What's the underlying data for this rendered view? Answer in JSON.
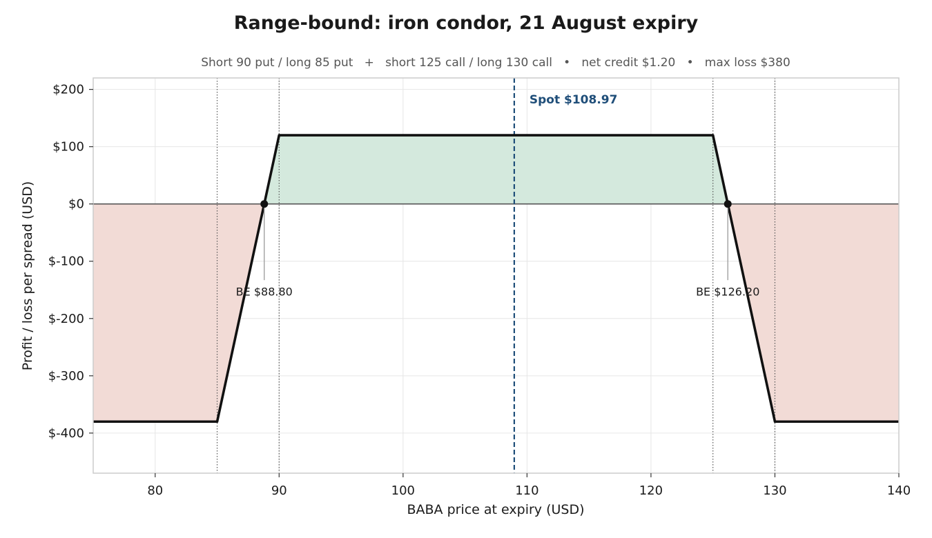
{
  "chart_data": {
    "type": "line",
    "title": "Range-bound: iron condor, 21 August expiry",
    "subtitle": "Short 90 put / long 85 put   +   short 125 call / long 130 call   •   net credit $1.20   •   max loss $380",
    "xlabel": "BABA price at expiry (USD)",
    "ylabel": "Profit / loss per spread (USD)",
    "xlim": [
      75,
      140
    ],
    "ylim": [
      -470,
      220
    ],
    "x_ticks": [
      80,
      90,
      100,
      110,
      120,
      130,
      140
    ],
    "x_tick_labels": [
      "80",
      "90",
      "100",
      "110",
      "120",
      "130",
      "140"
    ],
    "y_ticks": [
      200,
      100,
      0,
      -100,
      -200,
      -300,
      -400
    ],
    "y_tick_labels": [
      "$200",
      "$100",
      "$0",
      "$-100",
      "$-200",
      "$-300",
      "$-400"
    ],
    "grid": true,
    "series": [
      {
        "x": [
          75,
          85,
          90,
          125,
          130,
          140
        ],
        "y": [
          -380,
          -380,
          120,
          120,
          -380,
          -380
        ]
      }
    ],
    "strikes": [
      85,
      90,
      125,
      130
    ],
    "spot": {
      "value": 108.97,
      "label": "Spot $108.97"
    },
    "breakevens": [
      {
        "x": 88.8,
        "label": "BE $88.80"
      },
      {
        "x": 126.2,
        "label": "BE $126.20"
      }
    ],
    "colors": {
      "payoff": "#111111",
      "profit_fill": "#d4e9dd",
      "loss_fill": "#f2dbd6",
      "spot": "#1f4e79",
      "strike": "#555555",
      "grid": "#e6e6e6",
      "zero_line": "#555555"
    }
  }
}
